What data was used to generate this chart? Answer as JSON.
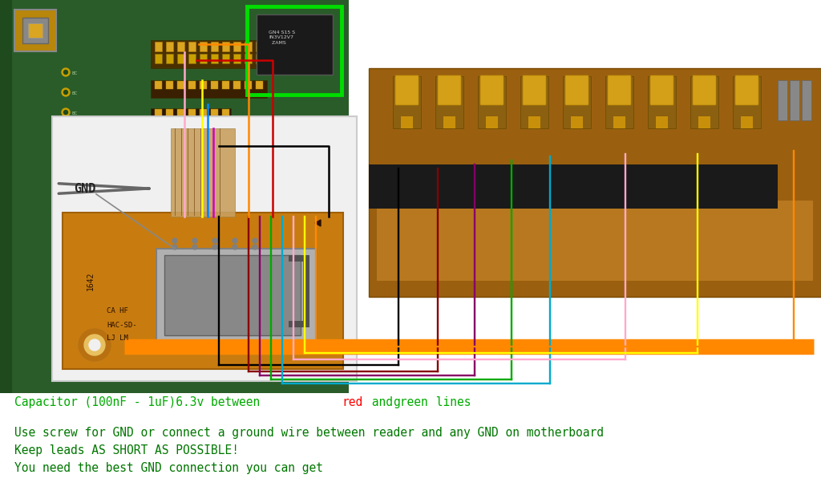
{
  "background_color": "#ffffff",
  "caption_color": "#00aa00",
  "caption_red_color": "#ff0000",
  "caption_green_color": "#00aa00",
  "note_color": "#007700",
  "font_family": "monospace",
  "gnd_label": "GND",
  "gnd_arrow_color": "#888888",
  "wire_colors_left_pcb": [
    "#ff8800",
    "#ffff00",
    "#0066ff",
    "#cc00cc",
    "#000000"
  ],
  "wire_colors_right": [
    "#000000",
    "#880000",
    "#8800aa",
    "#00aa00",
    "#00aaff",
    "#ffaaff",
    "#ffff00",
    "#ff8800"
  ],
  "note_line1": "Use screw for GND or connect a ground wire between reader and any GND on motherboard",
  "note_line2": "Keep leads AS SHORT AS POSSIBLE!",
  "note_line3": "You need the best GND connection you can get",
  "caption_main": "Capacitor (100nF - 1uF)6.3v between ",
  "caption_red_word": "red",
  "caption_and": " and ",
  "caption_green_word": "green",
  "caption_end": " lines"
}
